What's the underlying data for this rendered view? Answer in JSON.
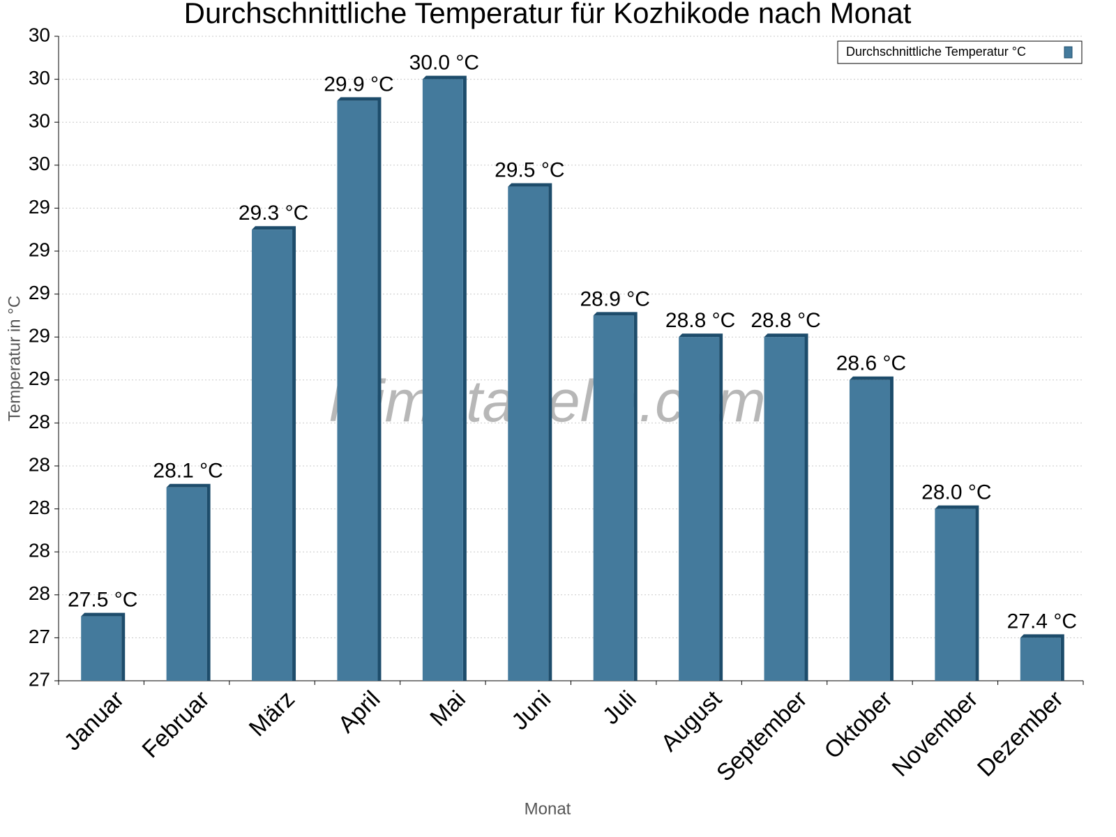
{
  "chart_data": {
    "type": "bar",
    "title": "Durchschnittliche Temperatur für Kozhikode nach Monat",
    "x_label": "Monat",
    "y_label": "Temperatur in °C",
    "watermark": "klimatabelle.com",
    "categories": [
      "Januar",
      "Februar",
      "März",
      "April",
      "Mai",
      "Juni",
      "Juli",
      "August",
      "September",
      "Oktober",
      "November",
      "Dezember"
    ],
    "series": [
      {
        "name": "Durchschnittliche Temperatur °C",
        "color": "#447a9c",
        "values": [
          27.5,
          28.1,
          29.3,
          29.9,
          30.0,
          29.5,
          28.9,
          28.8,
          28.8,
          28.6,
          28.0,
          27.4
        ],
        "value_labels": [
          "27.5 °C",
          "28.1 °C",
          "29.3 °C",
          "29.9 °C",
          "30.0 °C",
          "29.5 °C",
          "28.9 °C",
          "28.8 °C",
          "28.8 °C",
          "28.6 °C",
          "28.0 °C",
          "27.4 °C"
        ]
      }
    ],
    "ylim": [
      27.2,
      30.2
    ],
    "yticks": [
      {
        "value": 27.2,
        "label": "27"
      },
      {
        "value": 27.4,
        "label": "27"
      },
      {
        "value": 27.6,
        "label": "28"
      },
      {
        "value": 27.8,
        "label": "28"
      },
      {
        "value": 28.0,
        "label": "28"
      },
      {
        "value": 28.2,
        "label": "28"
      },
      {
        "value": 28.4,
        "label": "28"
      },
      {
        "value": 28.6,
        "label": "29"
      },
      {
        "value": 28.8,
        "label": "29"
      },
      {
        "value": 29.0,
        "label": "29"
      },
      {
        "value": 29.2,
        "label": "29"
      },
      {
        "value": 29.4,
        "label": "29"
      },
      {
        "value": 29.6,
        "label": "30"
      },
      {
        "value": 29.8,
        "label": "30"
      },
      {
        "value": 30.0,
        "label": "30"
      },
      {
        "value": 30.2,
        "label": "30"
      }
    ],
    "grid": true,
    "legend_position": "top-right"
  }
}
